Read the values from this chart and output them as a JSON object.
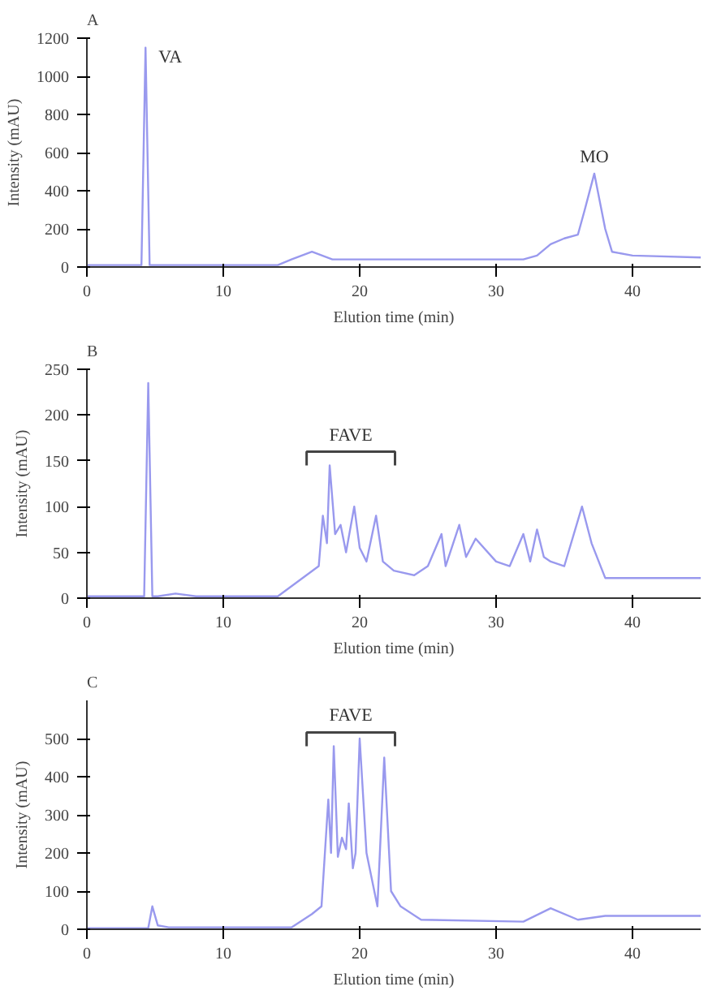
{
  "chart_data": [
    {
      "type": "line",
      "title": "A",
      "xlabel": "Elution time (min)",
      "ylabel": "Intensity (mAU)",
      "xlim": [
        0,
        45
      ],
      "xticks": [
        0,
        10,
        20,
        30,
        40
      ],
      "ylim": [
        0,
        1200
      ],
      "yticks": [
        0,
        200,
        400,
        600,
        800,
        1000,
        1200
      ],
      "grid": false,
      "marker": "none",
      "line_style": "solid",
      "annotations": [
        {
          "text": "VA",
          "x": 4.3,
          "y": 1150
        },
        {
          "text": "MO",
          "x": 37.2,
          "y": 490
        }
      ],
      "series": [
        {
          "color": "#9999ee",
          "x": [
            0,
            4.0,
            4.3,
            4.6,
            5.0,
            14,
            15,
            16.5,
            18,
            20,
            32,
            33,
            34,
            35,
            36,
            36.5,
            37.2,
            38,
            38.5,
            40,
            45
          ],
          "values": [
            10,
            10,
            1150,
            10,
            10,
            10,
            40,
            80,
            40,
            40,
            40,
            60,
            120,
            150,
            170,
            300,
            490,
            200,
            80,
            60,
            50
          ]
        }
      ]
    },
    {
      "type": "line",
      "title": "B",
      "xlabel": "Elution time (min)",
      "ylabel": "Intensity (mAU)",
      "xlim": [
        0,
        45
      ],
      "xticks": [
        0,
        10,
        20,
        30,
        40
      ],
      "ylim": [
        0,
        250
      ],
      "yticks": [
        0,
        50,
        100,
        150,
        200,
        250
      ],
      "grid": false,
      "marker": "none",
      "line_style": "solid",
      "annotations": [
        "FAVE"
      ],
      "series": [
        {
          "color": "#9999ee",
          "x": [
            0,
            4.2,
            4.5,
            4.8,
            5.2,
            6.5,
            8,
            14,
            17,
            17.3,
            17.6,
            17.8,
            18.2,
            18.6,
            19,
            19.6,
            20,
            20.5,
            21.2,
            21.7,
            22.5,
            24,
            25,
            26,
            26.3,
            27.3,
            27.8,
            28.5,
            30,
            31,
            32,
            32.5,
            33,
            33.5,
            34,
            35,
            36.3,
            37,
            38,
            45
          ],
          "values": [
            2,
            2,
            235,
            2,
            2,
            5,
            2,
            2,
            35,
            90,
            60,
            145,
            70,
            80,
            50,
            100,
            55,
            40,
            90,
            40,
            30,
            25,
            35,
            70,
            35,
            80,
            45,
            65,
            40,
            35,
            70,
            40,
            75,
            45,
            40,
            35,
            100,
            60,
            22,
            22
          ]
        }
      ]
    },
    {
      "type": "line",
      "title": "C",
      "xlabel": "Elution time (min)",
      "ylabel": "Intensity (mAU)",
      "xlim": [
        0,
        45
      ],
      "xticks": [
        0,
        10,
        20,
        30,
        40
      ],
      "ylim": [
        0,
        600
      ],
      "yticks": [
        0,
        100,
        200,
        300,
        400,
        500
      ],
      "grid": false,
      "marker": "none",
      "line_style": "solid",
      "annotations": [
        "FAVE"
      ],
      "series": [
        {
          "color": "#9999ee",
          "x": [
            0,
            4.5,
            4.8,
            5.2,
            6,
            15,
            16.5,
            17.2,
            17.7,
            17.9,
            18.1,
            18.4,
            18.7,
            19.0,
            19.2,
            19.5,
            19.7,
            20.0,
            20.5,
            21.3,
            21.8,
            22.3,
            23,
            24.5,
            32,
            34,
            36,
            38,
            45
          ],
          "values": [
            3,
            3,
            60,
            10,
            5,
            5,
            40,
            60,
            340,
            200,
            480,
            190,
            240,
            210,
            330,
            160,
            200,
            500,
            200,
            60,
            450,
            100,
            60,
            25,
            20,
            55,
            25,
            35,
            35
          ]
        }
      ]
    }
  ]
}
